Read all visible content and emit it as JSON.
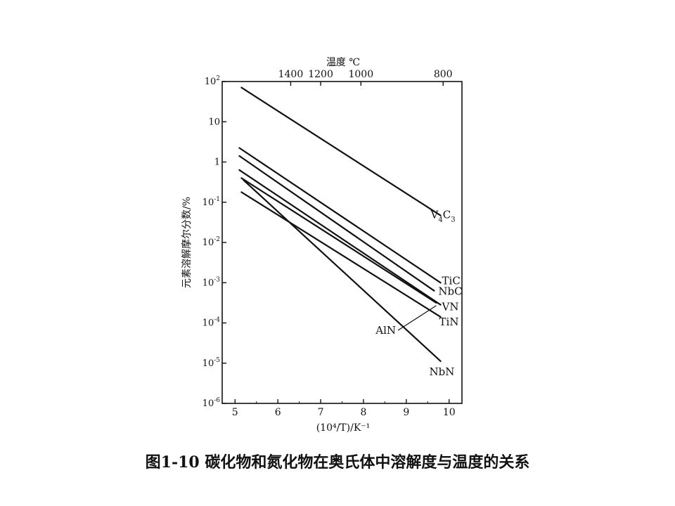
{
  "caption": "图1-10 碳化物和氮化物在奥氏体中溶解度与温度的关系",
  "chart_data": {
    "type": "line",
    "xlabel": "(10⁴/T)/K⁻¹",
    "ylabel": "元素溶解摩尔分数/%",
    "top_axis_label": "温度  ℃",
    "xlim": [
      4.7,
      10.3
    ],
    "ylim": [
      -6,
      2
    ],
    "y_scale": "log",
    "grid": false,
    "x_ticks": [
      {
        "value": 5,
        "label": "5"
      },
      {
        "value": 6,
        "label": "6"
      },
      {
        "value": 7,
        "label": "7"
      },
      {
        "value": 8,
        "label": "8"
      },
      {
        "value": 9,
        "label": "9"
      },
      {
        "value": 10,
        "label": "10"
      }
    ],
    "y_ticks": [
      {
        "value": 2,
        "base": "10",
        "exp": "2"
      },
      {
        "value": 1,
        "base": "10",
        "exp": ""
      },
      {
        "value": 0,
        "base": "1",
        "exp": ""
      },
      {
        "value": -1,
        "base": "10",
        "exp": "-1"
      },
      {
        "value": -2,
        "base": "10",
        "exp": "-2"
      },
      {
        "value": -3,
        "base": "10",
        "exp": "-3"
      },
      {
        "value": -4,
        "base": "10",
        "exp": "-4"
      },
      {
        "value": -5,
        "base": "10",
        "exp": "-5"
      },
      {
        "value": -6,
        "base": "10",
        "exp": "-6"
      }
    ],
    "top_ticks": [
      {
        "x": 6.3,
        "label": "1400"
      },
      {
        "x": 7.0,
        "label": "1200"
      },
      {
        "x": 7.94,
        "label": "1000"
      },
      {
        "x": 9.86,
        "label": "800"
      }
    ],
    "series": [
      {
        "name": "V4C3",
        "x": [
          5.15,
          9.8
        ],
        "log10_y": [
          1.85,
          -1.33
        ]
      },
      {
        "name": "TiC",
        "x": [
          5.1,
          9.8
        ],
        "log10_y": [
          0.35,
          -3.0
        ]
      },
      {
        "name": "NbC",
        "x": [
          5.1,
          9.65
        ],
        "log10_y": [
          0.15,
          -3.2
        ]
      },
      {
        "name": "VN",
        "x": [
          5.1,
          9.8
        ],
        "log10_y": [
          -0.2,
          -3.55
        ]
      },
      {
        "name": "TiN",
        "x": [
          5.15,
          9.8
        ],
        "log10_y": [
          -0.75,
          -3.85
        ]
      },
      {
        "name": "AlN",
        "x": [
          5.15,
          9.7
        ],
        "log10_y": [
          -0.4,
          -3.5
        ]
      },
      {
        "name": "NbN",
        "x": [
          5.2,
          9.8
        ],
        "log10_y": [
          -0.45,
          -4.95
        ]
      }
    ],
    "labels": [
      {
        "series": "V4C3",
        "base": "V",
        "sub": "4",
        "rest": "C",
        "sub2": "3"
      },
      {
        "series": "TiC",
        "text": "TiC"
      },
      {
        "series": "NbC",
        "text": "NbC"
      },
      {
        "series": "VN",
        "text": "VN"
      },
      {
        "series": "TiN",
        "text": "TiN"
      },
      {
        "series": "AlN",
        "text": "AlN"
      },
      {
        "series": "NbN",
        "text": "NbN"
      }
    ]
  }
}
